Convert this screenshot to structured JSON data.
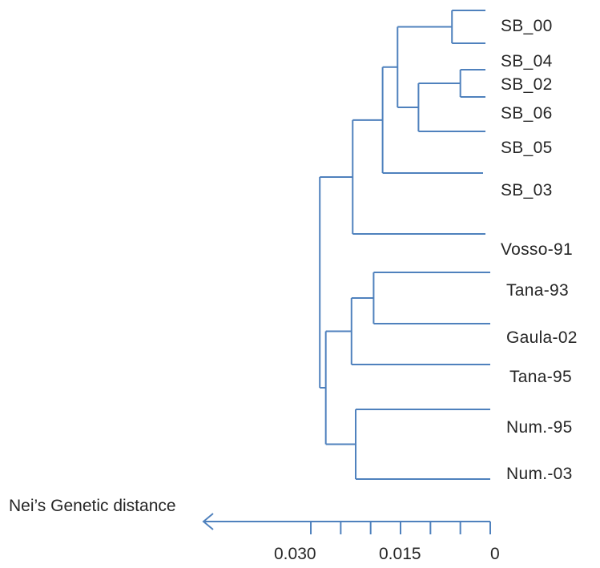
{
  "leaves": [
    "SB_00",
    "SB_04",
    "SB_02",
    "SB_06",
    "SB_05",
    "SB_03",
    "Vosso-91",
    "Tana-93",
    "Gaula-02",
    "Tana-95",
    "Num.-95",
    "Num.-03"
  ],
  "axis": {
    "title": "Nei’s Genetic distance",
    "tick_labels": [
      "0.030",
      "0.015",
      "0"
    ],
    "tick_label_values": [
      0.03,
      0.015,
      0
    ],
    "tick_values": [
      0.03,
      0.025,
      0.02,
      0.015,
      0.01,
      0.005,
      0
    ]
  },
  "colors": {
    "branch": "#4F81BD",
    "text": "#262626"
  },
  "chart_data": {
    "type": "dendrogram",
    "xlabel": "Nei’s Genetic distance",
    "xlim": [
      0.03,
      0
    ],
    "merges": [
      {
        "children": [
          "SB_00",
          "SB_04"
        ],
        "height": 0.0064
      },
      {
        "children": [
          "SB_02",
          "SB_06"
        ],
        "height": 0.005
      },
      {
        "children": [
          "SB_02+SB_06",
          "SB_05"
        ],
        "height": 0.012
      },
      {
        "children": [
          "SB_00+SB_04",
          "SB_02+SB_06+SB_05"
        ],
        "height": 0.0155
      },
      {
        "children": [
          "SB cluster",
          "SB_03"
        ],
        "height": 0.018
      },
      {
        "children": [
          "SB cluster+SB_03",
          "Vosso-91"
        ],
        "height": 0.023
      },
      {
        "children": [
          "Tana-93",
          "Gaula-02"
        ],
        "height": 0.0195
      },
      {
        "children": [
          "Tana-93+Gaula-02",
          "Tana-95"
        ],
        "height": 0.0232
      },
      {
        "children": [
          "Num.-95",
          "Num.-03"
        ],
        "height": 0.0225
      },
      {
        "children": [
          "Tana/Gaula group",
          "Num. group"
        ],
        "height": 0.0275
      },
      {
        "children": [
          "SB/Vosso group",
          "Tana/Gaula/Num. group"
        ],
        "height": 0.0285
      }
    ]
  }
}
